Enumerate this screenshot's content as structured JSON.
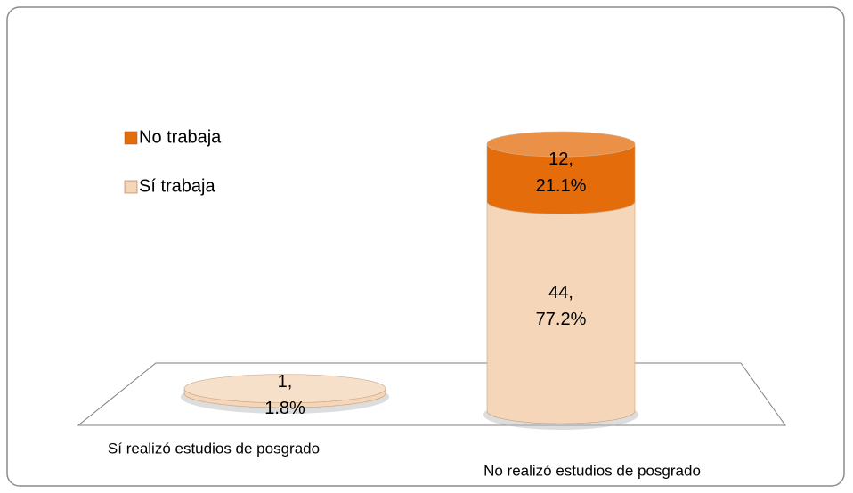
{
  "chart_data": {
    "type": "bar3d-cylinder-stacked",
    "categories": [
      "Sí realizó estudios de posgrado",
      "No realizó estudios de posgrado"
    ],
    "series": [
      {
        "name": "Sí trabaja",
        "color": "#f5d6b8",
        "values": [
          1,
          44
        ],
        "value_labels": [
          "1,\n1.8%",
          "44,\n77.2%"
        ]
      },
      {
        "name": "No trabaja",
        "color": "#e46c0a",
        "values": [
          null,
          12
        ],
        "value_labels": [
          null,
          "12,\n21.1%"
        ]
      }
    ],
    "legend": "upper left"
  }
}
